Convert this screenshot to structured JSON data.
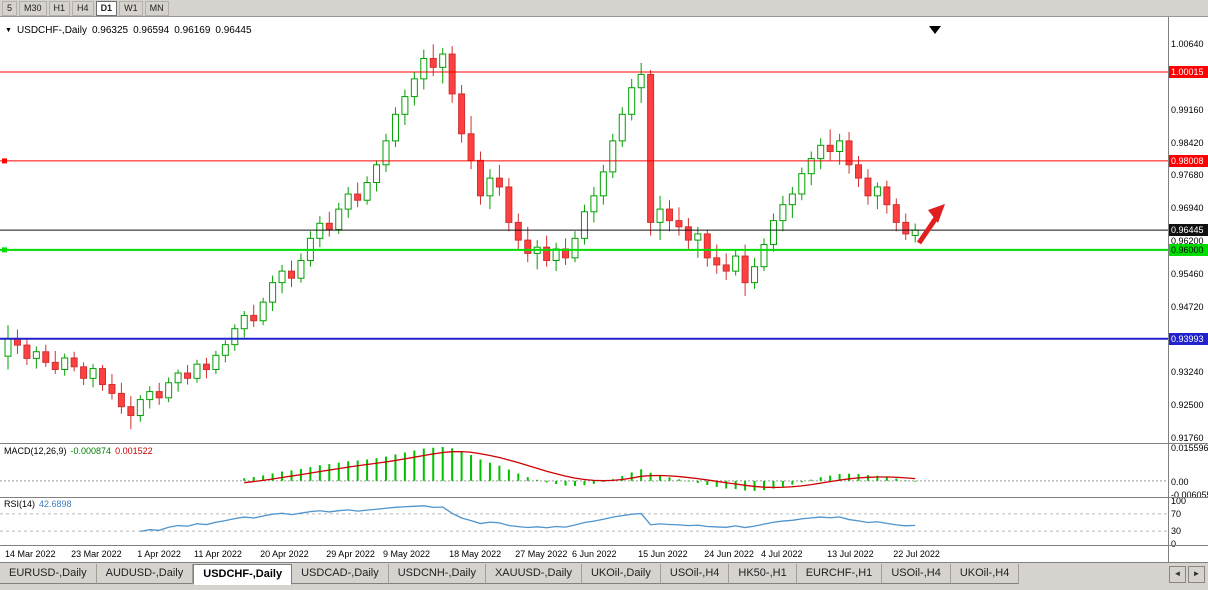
{
  "toolbar": {
    "buttons": [
      "5",
      "M30",
      "H1",
      "H4",
      "D1",
      "W1",
      "MN"
    ],
    "active": "D1"
  },
  "chart_header": {
    "symbol": "USDCHF-,Daily",
    "open": "0.96325",
    "high": "0.96594",
    "low": "0.96169",
    "close": "0.96445"
  },
  "chart_data": {
    "type": "candlestick",
    "symbol": "USDCHF",
    "timeframe": "Daily",
    "price_axis_ticks": [
      "1.00640",
      "0.99900",
      "0.99160",
      "0.98420",
      "0.97680",
      "0.96940",
      "0.96200",
      "0.95460",
      "0.94720",
      "0.93980",
      "0.93240",
      "0.92500",
      "0.91760"
    ],
    "x_axis_dates": [
      {
        "index": 0,
        "label": "14 Mar 2022"
      },
      {
        "index": 7,
        "label": "23 Mar 2022"
      },
      {
        "index": 14,
        "label": "1 Apr 2022"
      },
      {
        "index": 20,
        "label": "11 Apr 2022"
      },
      {
        "index": 27,
        "label": "20 Apr 2022"
      },
      {
        "index": 34,
        "label": "29 Apr 2022"
      },
      {
        "index": 40,
        "label": "9 May 2022"
      },
      {
        "index": 47,
        "label": "18 May 2022"
      },
      {
        "index": 54,
        "label": "27 May 2022"
      },
      {
        "index": 60,
        "label": "6 Jun 2022"
      },
      {
        "index": 67,
        "label": "15 Jun 2022"
      },
      {
        "index": 74,
        "label": "24 Jun 2022"
      },
      {
        "index": 80,
        "label": "4 Jul 2022"
      },
      {
        "index": 87,
        "label": "13 Jul 2022"
      },
      {
        "index": 94,
        "label": "22 Jul 2022"
      }
    ],
    "candles": [
      [
        0.936,
        0.943,
        0.933,
        0.94
      ],
      [
        0.94,
        0.942,
        0.9365,
        0.9385
      ],
      [
        0.9385,
        0.94,
        0.934,
        0.9355
      ],
      [
        0.9355,
        0.9382,
        0.9332,
        0.937
      ],
      [
        0.937,
        0.9386,
        0.9336,
        0.9346
      ],
      [
        0.9346,
        0.9372,
        0.932,
        0.933
      ],
      [
        0.933,
        0.9366,
        0.9316,
        0.9356
      ],
      [
        0.9356,
        0.937,
        0.9326,
        0.9336
      ],
      [
        0.9336,
        0.9346,
        0.9295,
        0.931
      ],
      [
        0.931,
        0.9342,
        0.929,
        0.9332
      ],
      [
        0.9332,
        0.934,
        0.9282,
        0.9296
      ],
      [
        0.9296,
        0.932,
        0.9262,
        0.9276
      ],
      [
        0.9276,
        0.93,
        0.923,
        0.9246
      ],
      [
        0.9246,
        0.927,
        0.9195,
        0.9226
      ],
      [
        0.9226,
        0.9272,
        0.9212,
        0.9262
      ],
      [
        0.9262,
        0.9292,
        0.9242,
        0.928
      ],
      [
        0.928,
        0.93,
        0.925,
        0.9266
      ],
      [
        0.9266,
        0.9312,
        0.9256,
        0.93
      ],
      [
        0.93,
        0.933,
        0.928,
        0.9322
      ],
      [
        0.9322,
        0.934,
        0.9296,
        0.931
      ],
      [
        0.931,
        0.9352,
        0.93,
        0.9342
      ],
      [
        0.9342,
        0.9356,
        0.931,
        0.933
      ],
      [
        0.933,
        0.9372,
        0.932,
        0.9362
      ],
      [
        0.9362,
        0.9396,
        0.9346,
        0.9386
      ],
      [
        0.9386,
        0.9432,
        0.9372,
        0.9422
      ],
      [
        0.9422,
        0.9462,
        0.9402,
        0.9452
      ],
      [
        0.9452,
        0.9476,
        0.9426,
        0.944
      ],
      [
        0.944,
        0.9492,
        0.943,
        0.9482
      ],
      [
        0.9482,
        0.9542,
        0.9462,
        0.9526
      ],
      [
        0.9526,
        0.9566,
        0.9502,
        0.9552
      ],
      [
        0.9552,
        0.9576,
        0.9516,
        0.9536
      ],
      [
        0.9536,
        0.9592,
        0.9526,
        0.9576
      ],
      [
        0.9576,
        0.9642,
        0.9562,
        0.9626
      ],
      [
        0.9626,
        0.9676,
        0.9606,
        0.966
      ],
      [
        0.966,
        0.9686,
        0.963,
        0.9646
      ],
      [
        0.9646,
        0.9706,
        0.9636,
        0.9692
      ],
      [
        0.9692,
        0.9742,
        0.9672,
        0.9726
      ],
      [
        0.9726,
        0.9752,
        0.9696,
        0.9712
      ],
      [
        0.9712,
        0.9766,
        0.9702,
        0.9752
      ],
      [
        0.9752,
        0.9802,
        0.9732,
        0.9792
      ],
      [
        0.9792,
        0.9862,
        0.9776,
        0.9846
      ],
      [
        0.9846,
        0.9922,
        0.9832,
        0.9906
      ],
      [
        0.9906,
        0.9962,
        0.9882,
        0.9946
      ],
      [
        0.9946,
        1.0002,
        0.9926,
        0.9986
      ],
      [
        0.9986,
        1.0052,
        0.9962,
        1.0032
      ],
      [
        1.0032,
        1.0064,
        0.9992,
        1.0012
      ],
      [
        1.0012,
        1.0056,
        0.9976,
        1.0042
      ],
      [
        1.0042,
        1.006,
        0.9932,
        0.9952
      ],
      [
        0.9952,
        0.9972,
        0.9842,
        0.9862
      ],
      [
        0.9862,
        0.9902,
        0.9782,
        0.9802
      ],
      [
        0.9802,
        0.9822,
        0.9702,
        0.9722
      ],
      [
        0.9722,
        0.9782,
        0.9692,
        0.9762
      ],
      [
        0.9762,
        0.9792,
        0.9722,
        0.9742
      ],
      [
        0.9742,
        0.9762,
        0.9642,
        0.9662
      ],
      [
        0.9662,
        0.9682,
        0.9602,
        0.9622
      ],
      [
        0.9622,
        0.9652,
        0.9572,
        0.9592
      ],
      [
        0.9592,
        0.9622,
        0.9556,
        0.9606
      ],
      [
        0.9606,
        0.9632,
        0.9562,
        0.9576
      ],
      [
        0.9576,
        0.9616,
        0.9552,
        0.9602
      ],
      [
        0.9602,
        0.9626,
        0.9566,
        0.9582
      ],
      [
        0.9582,
        0.9642,
        0.9572,
        0.9626
      ],
      [
        0.9626,
        0.9702,
        0.9612,
        0.9686
      ],
      [
        0.9686,
        0.9742,
        0.9662,
        0.9722
      ],
      [
        0.9722,
        0.9792,
        0.9702,
        0.9776
      ],
      [
        0.9776,
        0.9862,
        0.9762,
        0.9846
      ],
      [
        0.9846,
        0.9922,
        0.9832,
        0.9906
      ],
      [
        0.9906,
        0.9986,
        0.9892,
        0.9966
      ],
      [
        0.9966,
        1.0022,
        0.9932,
        0.9996
      ],
      [
        0.9996,
        1.0006,
        0.9632,
        0.9662
      ],
      [
        0.9662,
        0.9722,
        0.9622,
        0.9692
      ],
      [
        0.9692,
        0.9712,
        0.9642,
        0.9666
      ],
      [
        0.9666,
        0.9696,
        0.9632,
        0.9652
      ],
      [
        0.9652,
        0.9672,
        0.9602,
        0.9622
      ],
      [
        0.9622,
        0.9652,
        0.9582,
        0.9636
      ],
      [
        0.9636,
        0.9646,
        0.9562,
        0.9582
      ],
      [
        0.9582,
        0.9612,
        0.9546,
        0.9566
      ],
      [
        0.9566,
        0.9592,
        0.9532,
        0.9552
      ],
      [
        0.9552,
        0.9602,
        0.9542,
        0.9586
      ],
      [
        0.9586,
        0.9612,
        0.9496,
        0.9526
      ],
      [
        0.9526,
        0.9582,
        0.9512,
        0.9562
      ],
      [
        0.9562,
        0.9626,
        0.9552,
        0.9612
      ],
      [
        0.9612,
        0.9682,
        0.9596,
        0.9666
      ],
      [
        0.9666,
        0.9722,
        0.9642,
        0.9702
      ],
      [
        0.9702,
        0.9742,
        0.9672,
        0.9726
      ],
      [
        0.9726,
        0.9786,
        0.9712,
        0.9772
      ],
      [
        0.9772,
        0.9822,
        0.9746,
        0.9806
      ],
      [
        0.9806,
        0.9852,
        0.9782,
        0.9836
      ],
      [
        0.9836,
        0.9872,
        0.9802,
        0.9822
      ],
      [
        0.9822,
        0.9862,
        0.9792,
        0.9846
      ],
      [
        0.9846,
        0.9866,
        0.9772,
        0.9792
      ],
      [
        0.9792,
        0.9812,
        0.9742,
        0.9762
      ],
      [
        0.9762,
        0.9782,
        0.9702,
        0.9722
      ],
      [
        0.9722,
        0.9752,
        0.9692,
        0.9742
      ],
      [
        0.9742,
        0.9756,
        0.9682,
        0.9702
      ],
      [
        0.9702,
        0.9716,
        0.9642,
        0.9662
      ],
      [
        0.9662,
        0.9682,
        0.9622,
        0.9636
      ],
      [
        0.96325,
        0.96594,
        0.96169,
        0.96445
      ]
    ],
    "candle_colors": {
      "bull_fill": "#FFFFFF",
      "bull_border": "#00A000",
      "bear_fill": "#FF4040",
      "bear_border": "#D03030"
    },
    "horizontal_lines": [
      {
        "price": 1.00015,
        "label": "1.00015",
        "color": "#FF0000",
        "badge_text_color": "#FFFFFF",
        "width": 1,
        "left_marker": false
      },
      {
        "price": 0.98008,
        "label": "0.98008",
        "color": "#FF0000",
        "badge_text_color": "#FFFFFF",
        "width": 1,
        "left_marker": true
      },
      {
        "price": 0.96445,
        "label": "0.96445",
        "color": "#111111",
        "badge_text_color": "#FFFFFF",
        "width": 1,
        "left_marker": false
      },
      {
        "price": 0.96,
        "label": "0.96000",
        "color": "#00DD00",
        "badge_text_color": "#000000",
        "width": 2,
        "left_marker": true
      },
      {
        "price": 0.93993,
        "label": "0.93993",
        "color": "#2222CC",
        "badge_text_color": "#FFFFFF",
        "width": 2,
        "left_marker": false
      }
    ],
    "annotations": {
      "up_arrow": {
        "color": "#E02020",
        "direction": "up-right"
      },
      "shift_marker_color": "#000000"
    },
    "indicators": {
      "macd": {
        "name": "MACD(12,26,9)",
        "main_value": "-0.000874",
        "signal_value": "0.001522",
        "axis_labels": [
          "0.015596",
          "0.00",
          "-0.006055"
        ],
        "range": [
          -0.006055,
          0.015596
        ],
        "histogram_color": "#00C000",
        "signal_color": "#CC0000"
      },
      "rsi": {
        "name": "RSI(14)",
        "value": "42.6898",
        "axis_labels": [
          "100",
          "70",
          "30",
          "0"
        ],
        "levels": [
          70,
          30
        ],
        "range": [
          0,
          100
        ],
        "line_color": "#4F94CD"
      }
    }
  },
  "tabs": {
    "active_index": 2,
    "items": [
      {
        "label": "EURUSD-,Daily"
      },
      {
        "label": "AUDUSD-,Daily"
      },
      {
        "label": "USDCHF-,Daily"
      },
      {
        "label": "USDCAD-,Daily"
      },
      {
        "label": "USDCNH-,Daily"
      },
      {
        "label": "XAUUSD-,Daily"
      },
      {
        "label": "UKOil-,Daily"
      },
      {
        "label": "USOil-,H4"
      },
      {
        "label": "HK50-,H1"
      },
      {
        "label": "EURCHF-,H1"
      },
      {
        "label": "USOil-,H4"
      },
      {
        "label": "UKOil-,H4"
      }
    ],
    "scroll_left": "◄",
    "scroll_right": "►"
  }
}
